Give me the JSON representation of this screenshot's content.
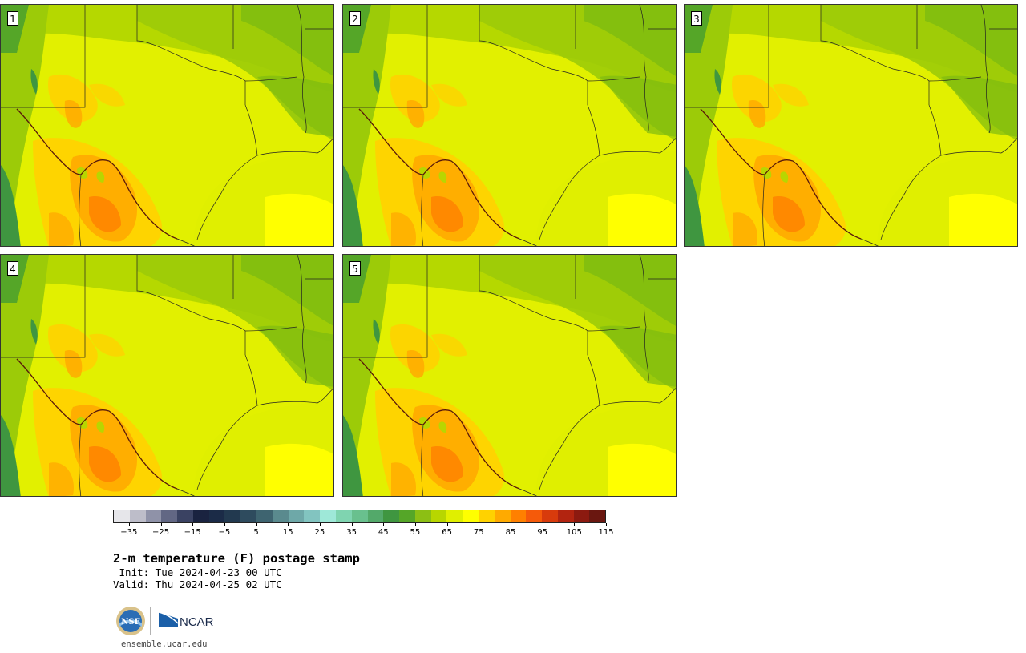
{
  "panels": [
    {
      "label": "1"
    },
    {
      "label": "2"
    },
    {
      "label": "3"
    },
    {
      "label": "4"
    },
    {
      "label": "5"
    }
  ],
  "colorbar": {
    "colors": [
      "#e6e6ea",
      "#bdbdc9",
      "#8f92a8",
      "#626784",
      "#3a4262",
      "#1a2340",
      "#1b2b47",
      "#22394f",
      "#2e4b5e",
      "#3e6470",
      "#5a8a8e",
      "#6ea8a8",
      "#82c4c0",
      "#9ee8d8",
      "#7fd4b0",
      "#69c08e",
      "#53a96a",
      "#3f9640",
      "#55a628",
      "#8cbf14",
      "#b8d600",
      "#e0ef00",
      "#ffff00",
      "#ffd200",
      "#ffaa00",
      "#ff8000",
      "#f55a0a",
      "#d83b0c",
      "#b22410",
      "#8c1a10",
      "#6a1710"
    ],
    "ticks": [
      "−35",
      "−25",
      "−15",
      "−5",
      "5",
      "15",
      "25",
      "35",
      "45",
      "55",
      "65",
      "75",
      "85",
      "95",
      "105",
      "115"
    ],
    "min": -40,
    "max": 115
  },
  "title": "2-m temperature (F) postage stamp",
  "init_line": " Init: Tue 2024-04-23 00 UTC",
  "valid_line": "Valid: Thu 2024-04-25 02 UTC",
  "logos": {
    "nsf": "NSF",
    "ncar": "NCAR"
  },
  "site": "ensemble.ucar.edu"
}
